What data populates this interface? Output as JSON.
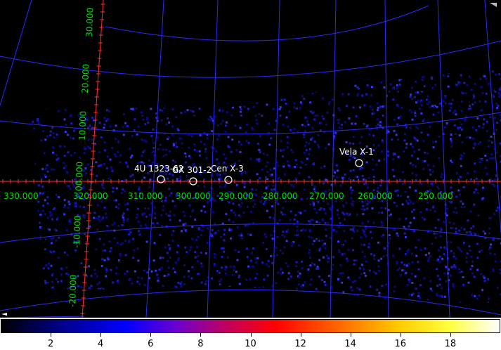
{
  "viewer": {
    "ra_labels": [
      "330.000",
      "320.000",
      "310.000",
      "300.000",
      "290.000",
      "280.000",
      "270.000",
      "260.000",
      "250.000"
    ],
    "dec_labels": [
      "30.000",
      "20.000",
      "10.000",
      "00.000",
      "-10.000",
      "-20.000"
    ],
    "sources": [
      {
        "name": "4U 1323-62"
      },
      {
        "name": "GX 301-2"
      },
      {
        "name": "Cen X-3"
      },
      {
        "name": "Vela X-1"
      }
    ],
    "colors": {
      "grid": "#2a2aff",
      "axis": "#ff3030",
      "label": "#00dd00",
      "source": "#ffffff",
      "background": "#000000"
    }
  },
  "colorbar": {
    "labels": [
      "2",
      "4",
      "6",
      "8",
      "10",
      "12",
      "14",
      "16",
      "18"
    ],
    "min": 0,
    "max": 20
  }
}
